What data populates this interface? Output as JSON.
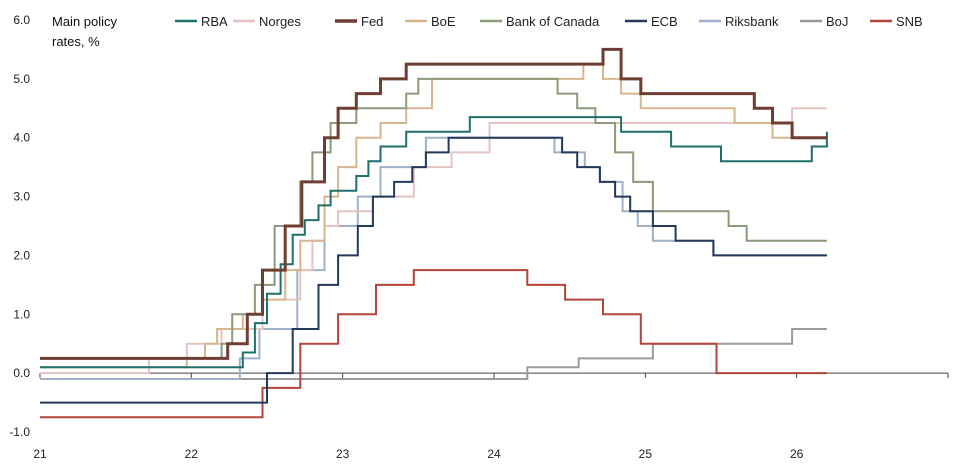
{
  "chart_data": {
    "type": "line",
    "step": true,
    "ylabel_lines": [
      "Main policy",
      "rates, %"
    ],
    "xlabel": "",
    "xlim": [
      21,
      27
    ],
    "ylim": [
      -1,
      6
    ],
    "x_ticks": [
      21,
      22,
      23,
      24,
      25,
      26
    ],
    "x_tick_labels": [
      "21",
      "22",
      "23",
      "24",
      "25",
      "26"
    ],
    "y_ticks": [
      -1,
      0,
      1,
      2,
      3,
      4,
      5,
      6
    ],
    "y_tick_labels": [
      "-1.0",
      "0.0",
      "1.0",
      "2.0",
      "3.0",
      "4.0",
      "5.0",
      "6.0"
    ],
    "grid": false,
    "legend_position": "top",
    "series": [
      {
        "name": "RBA",
        "color": "#1f6f6a",
        "x": [
          21,
          22.34,
          22.42,
          22.5,
          22.59,
          22.67,
          22.75,
          22.84,
          22.92,
          23.09,
          23.17,
          23.25,
          23.42,
          23.84,
          24.84,
          25.17,
          25.5,
          26.1,
          26.2
        ],
        "y": [
          0.1,
          0.35,
          0.85,
          1.35,
          1.85,
          2.35,
          2.6,
          2.85,
          3.1,
          3.35,
          3.6,
          3.85,
          4.1,
          4.35,
          4.1,
          3.85,
          3.6,
          3.85,
          4.1
        ]
      },
      {
        "name": "Norges",
        "color": "#e4c4c0",
        "x": [
          21,
          21.72,
          21.97,
          22.2,
          22.47,
          22.72,
          22.8,
          22.88,
          22.97,
          23.2,
          23.47,
          23.72,
          23.97,
          25.97
        ],
        "y": [
          0,
          0.25,
          0.5,
          0.75,
          1.25,
          1.75,
          2.25,
          2.5,
          2.75,
          3.0,
          3.5,
          3.75,
          4.25,
          4.5
        ]
      },
      {
        "name": "Fed",
        "color": "#6e3e33",
        "x": [
          21,
          22.24,
          22.37,
          22.47,
          22.62,
          22.73,
          22.88,
          22.97,
          23.09,
          23.25,
          23.42,
          24.72,
          24.84,
          24.97,
          25.72,
          25.84,
          25.97
        ],
        "y": [
          0.25,
          0.5,
          1.0,
          1.75,
          2.5,
          3.25,
          4.0,
          4.5,
          4.75,
          5.0,
          5.25,
          5.5,
          5.0,
          4.75,
          4.5,
          4.25,
          4.0
        ]
      },
      {
        "name": "BoE",
        "color": "#d7b58e",
        "x": [
          21,
          21.97,
          22.09,
          22.17,
          22.34,
          22.47,
          22.62,
          22.72,
          22.88,
          22.97,
          23.09,
          23.25,
          23.42,
          23.59,
          24.59,
          24.72,
          24.84,
          24.97,
          25.59,
          25.84
        ],
        "y": [
          0.1,
          0.25,
          0.5,
          0.75,
          1.0,
          1.25,
          1.75,
          2.25,
          3.0,
          3.5,
          4.0,
          4.25,
          4.5,
          5.0,
          5.25,
          5.0,
          4.75,
          4.5,
          4.25,
          4.0
        ]
      },
      {
        "name": "Bank of Canada",
        "color": "#8a9a7b",
        "x": [
          21,
          22.2,
          22.27,
          22.42,
          22.55,
          22.72,
          22.8,
          22.92,
          23.09,
          23.42,
          23.5,
          24.42,
          24.55,
          24.67,
          24.8,
          24.92,
          25.05,
          25.55,
          25.67
        ],
        "y": [
          0.25,
          0.5,
          1.0,
          1.5,
          2.5,
          3.25,
          3.75,
          4.25,
          4.5,
          4.75,
          5.0,
          4.75,
          4.5,
          4.25,
          3.75,
          3.25,
          2.75,
          2.5,
          2.25
        ]
      },
      {
        "name": "ECB",
        "color": "#23395b",
        "x": [
          21,
          22.5,
          22.67,
          22.84,
          22.97,
          23.1,
          23.2,
          23.34,
          23.46,
          23.55,
          23.7,
          24.45,
          24.55,
          24.7,
          24.8,
          24.9,
          25.05,
          25.2,
          25.45
        ],
        "y": [
          -0.5,
          0.0,
          0.75,
          1.5,
          2.0,
          2.5,
          3.0,
          3.25,
          3.5,
          3.75,
          4.0,
          3.75,
          3.5,
          3.25,
          3.0,
          2.75,
          2.5,
          2.25,
          2.0
        ]
      },
      {
        "name": "Riksbank",
        "color": "#9fb0c8",
        "x": [
          21,
          22.32,
          22.45,
          22.7,
          22.88,
          23.1,
          23.25,
          23.55,
          24.4,
          24.6,
          24.7,
          24.85,
          24.95,
          25.05,
          25.45
        ],
        "y": [
          -0.1,
          0.25,
          0.75,
          1.75,
          2.5,
          3.0,
          3.5,
          4.0,
          3.75,
          3.5,
          3.25,
          2.75,
          2.5,
          2.25,
          2.0
        ]
      },
      {
        "name": "BoJ",
        "color": "#9a9a9a",
        "x": [
          21,
          24.22,
          24.56,
          25.05,
          25.97
        ],
        "y": [
          -0.1,
          0.1,
          0.25,
          0.5,
          0.75
        ]
      },
      {
        "name": "SNB",
        "color": "#b5443b",
        "x": [
          21,
          22.47,
          22.72,
          22.97,
          23.22,
          23.47,
          24.22,
          24.47,
          24.72,
          24.97,
          25.47
        ],
        "y": [
          -0.75,
          -0.25,
          0.5,
          1.0,
          1.5,
          1.75,
          1.5,
          1.25,
          1.0,
          0.5,
          0.0
        ]
      }
    ],
    "series_end_x": 26.2
  }
}
